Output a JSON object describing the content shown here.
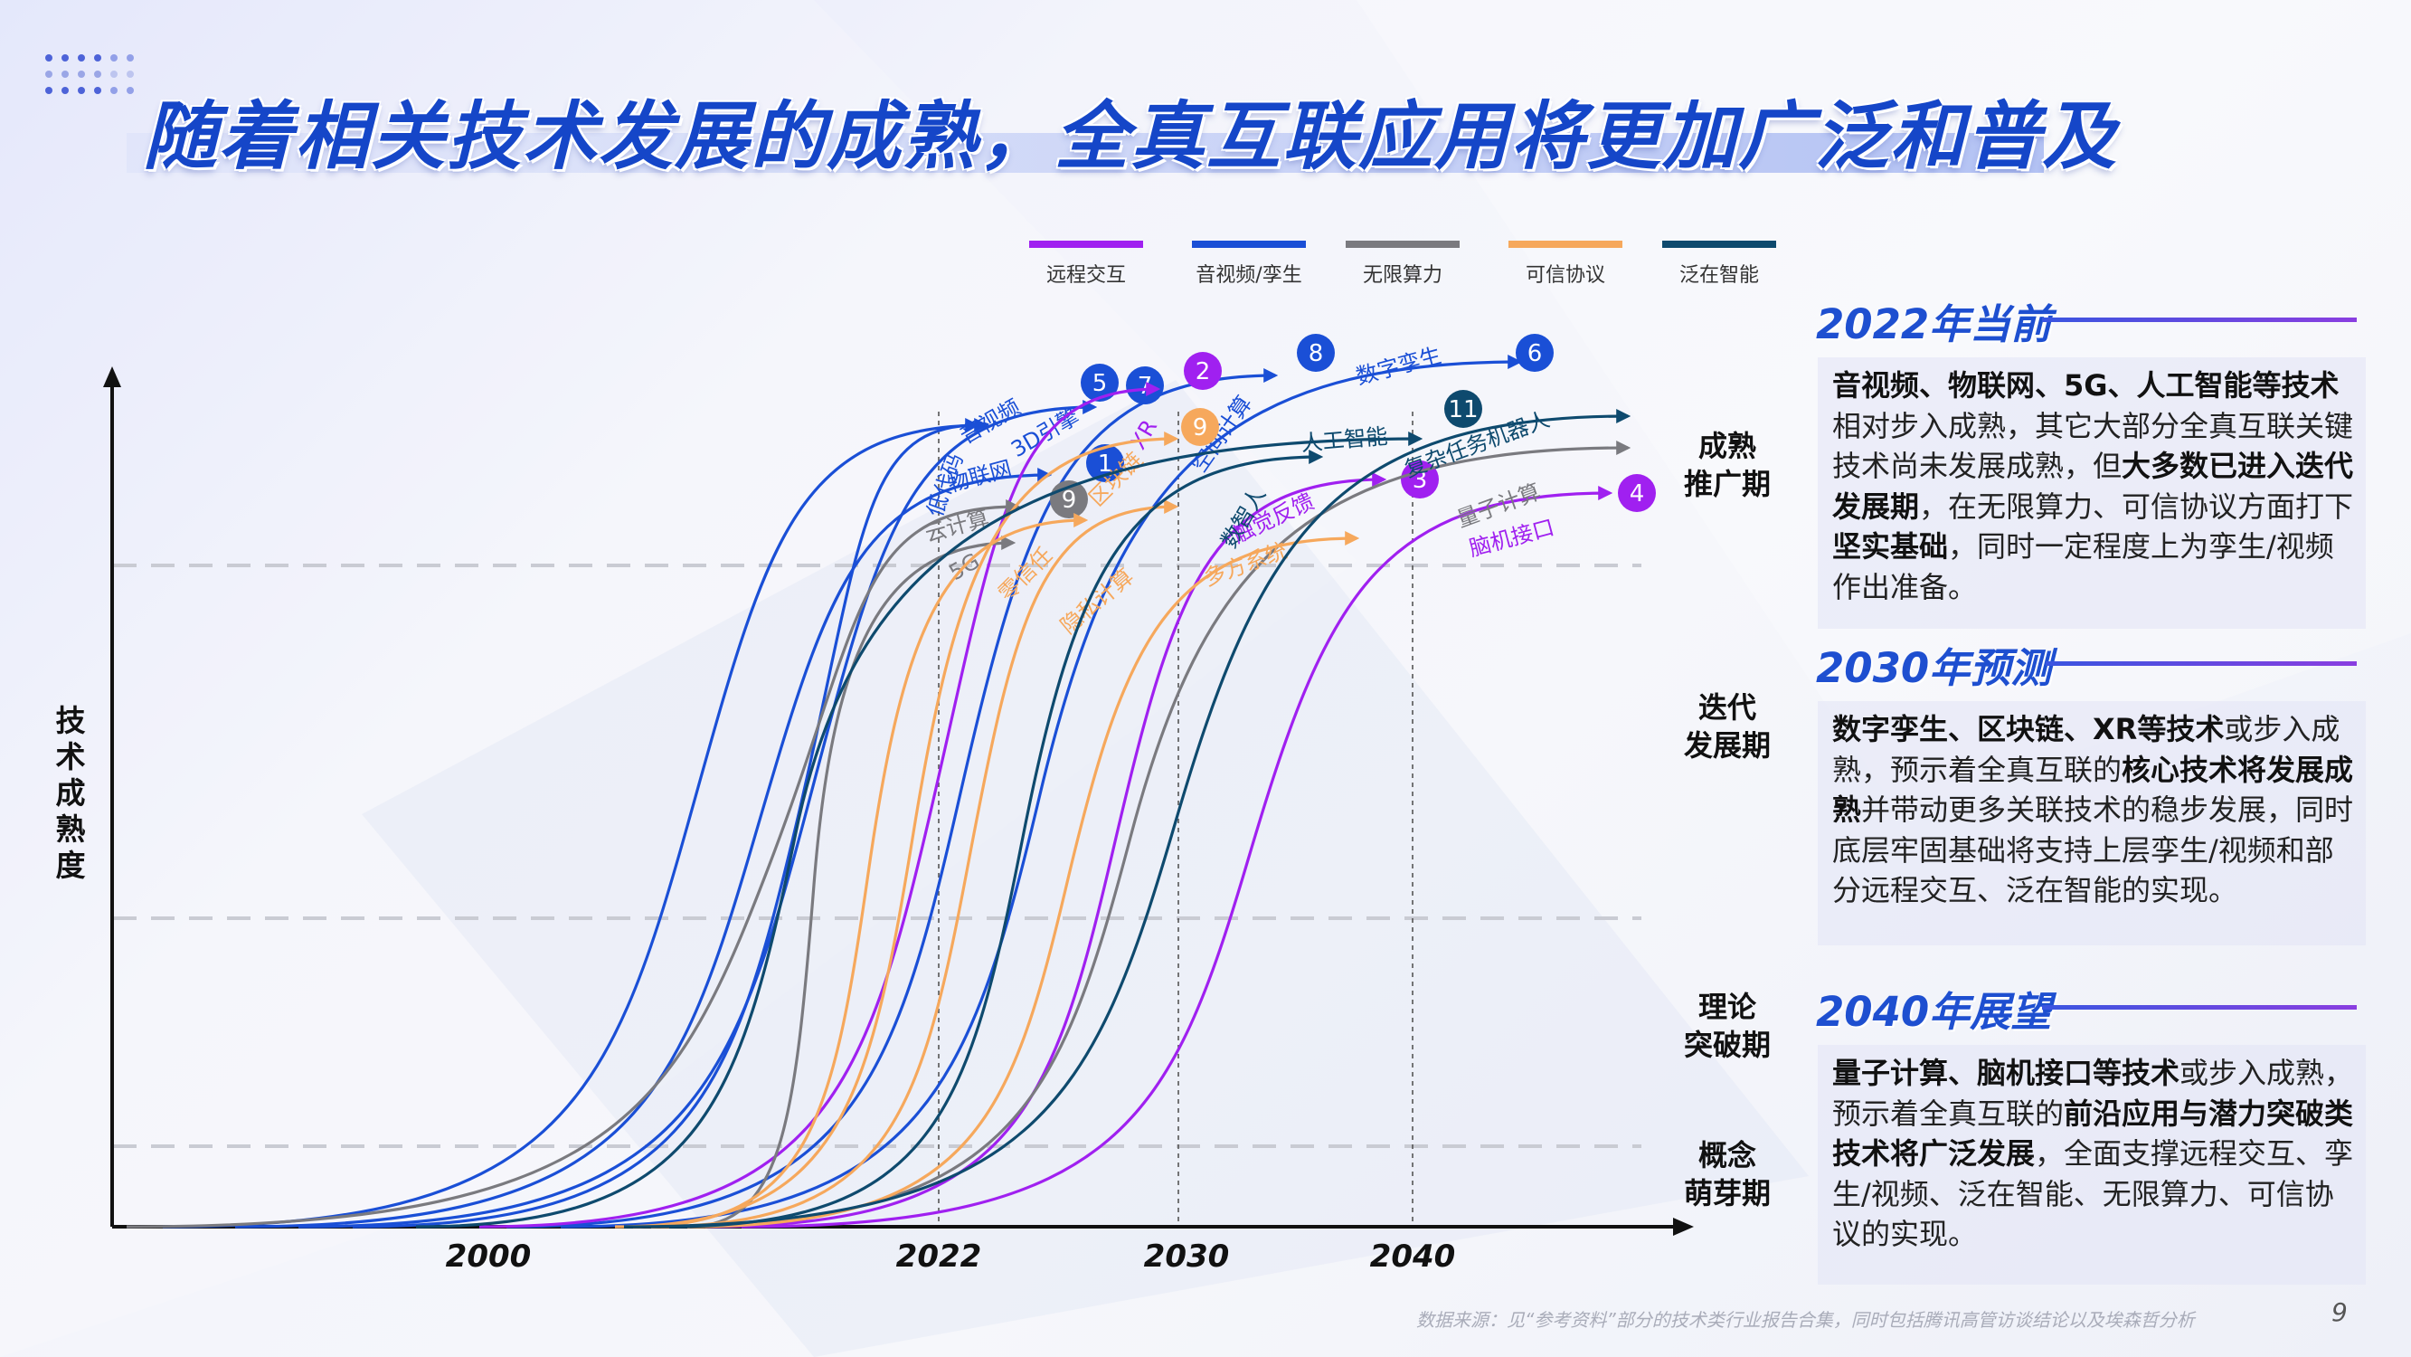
{
  "title": "随着相关技术发展的成熟，全真互联应用将更加广泛和普及",
  "source": "数据来源：见“参考资料”部分的技术类行业报告合集，同时包括腾讯高管访谈结论以及埃森哲分析",
  "page_number": "9",
  "colors": {
    "title": "#1546c8",
    "remote_interaction": "#a020f0",
    "av_twin": "#1a4fd6",
    "infinite_compute": "#7a7a7f",
    "trusted_protocol": "#f6a85c",
    "ubiquitous_intelligence": "#0e4a6e"
  },
  "panels": [
    {
      "heading": "2022年当前",
      "segments": [
        {
          "t": "音视频、物联网、5G、人工智能等技术",
          "b": true
        },
        {
          "t": "相对步入成熟，其它大部分全真互联关键技术尚未发展成熟，但",
          "b": false
        },
        {
          "t": "大多数已进入迭代发展期",
          "b": true
        },
        {
          "t": "，在无限算力、可信协议方面打下",
          "b": false
        },
        {
          "t": "坚实基础",
          "b": true
        },
        {
          "t": "，同时一定程度上为孪生/视频作出准备。",
          "b": false
        }
      ]
    },
    {
      "heading": "2030年预测",
      "segments": [
        {
          "t": "数字孪生、区块链、XR等技术",
          "b": true
        },
        {
          "t": "或步入成熟，预示着全真互联的",
          "b": false
        },
        {
          "t": "核心技术将发展成熟",
          "b": true
        },
        {
          "t": "并带动更多关联技术的稳步发展，同时底层牢固基础将支持上层孪生/视频和部分远程交互、泛在智能的实现。",
          "b": false
        }
      ]
    },
    {
      "heading": "2040年展望",
      "segments": [
        {
          "t": "量子计算、脑机接口等技术",
          "b": true
        },
        {
          "t": "或步入成熟，预示着全真互联的",
          "b": false
        },
        {
          "t": "前沿应用与潜力突破类技术将广泛发展",
          "b": true
        },
        {
          "t": "，全面支撑远程交互、孪生/视频、泛在智能、无限算力、可信协议的实现。",
          "b": false
        }
      ]
    }
  ],
  "chart_data": {
    "type": "line",
    "title": "",
    "xlabel": "",
    "ylabel": "技术成熟度",
    "x_ticks": [
      "2000",
      "2022",
      "2030",
      "2040"
    ],
    "y_levels": [
      "概念萌芽期",
      "理论突破期",
      "迭代发展期",
      "成熟推广期"
    ],
    "legend": [
      {
        "key": "remote",
        "name": "远程交互",
        "color": "#a020f0"
      },
      {
        "key": "av",
        "name": "音视频/孪生",
        "color": "#1a4fd6"
      },
      {
        "key": "compute",
        "name": "无限算力",
        "color": "#7a7a7f"
      },
      {
        "key": "trust",
        "name": "可信协议",
        "color": "#f6a85c"
      },
      {
        "key": "intel",
        "name": "泛在智能",
        "color": "#0e4a6e"
      }
    ],
    "vertical_markers": [
      "2022",
      "2030",
      "2040"
    ],
    "series": [
      {
        "name": "音视频",
        "group": "av",
        "label": "音视频",
        "badge": "5"
      },
      {
        "name": "物联网",
        "group": "av",
        "label": "物联网",
        "badge": "1"
      },
      {
        "name": "3D引擎",
        "group": "av",
        "label": "3D引擎",
        "badge": "7"
      },
      {
        "name": "空间计算",
        "group": "av",
        "label": "空间计算",
        "badge": "8"
      },
      {
        "name": "数字孪生",
        "group": "av",
        "label": "数字孪生",
        "badge": "6"
      },
      {
        "name": "低代码",
        "group": "av",
        "label": "低代码",
        "badge": ""
      },
      {
        "name": "XR",
        "group": "remote",
        "label": "XR",
        "badge": "2"
      },
      {
        "name": "触觉反馈",
        "group": "remote",
        "label": "触觉反馈",
        "badge": "3"
      },
      {
        "name": "脑机接口",
        "group": "remote",
        "label": "脑机接口",
        "badge": "4"
      },
      {
        "name": "云计算",
        "group": "compute",
        "label": "云计算",
        "badge": "9"
      },
      {
        "name": "5G",
        "group": "compute",
        "label": "5G",
        "badge": ""
      },
      {
        "name": "量子计算",
        "group": "compute",
        "label": "量子计算",
        "badge": ""
      },
      {
        "name": "区块链",
        "group": "trust",
        "label": "区块链",
        "badge": "9"
      },
      {
        "name": "隐私计算",
        "group": "trust",
        "label": "隐私计算",
        "badge": ""
      },
      {
        "name": "零信任",
        "group": "trust",
        "label": "零信任",
        "badge": ""
      },
      {
        "name": "多方系统",
        "group": "trust",
        "label": "多方系统",
        "badge": ""
      },
      {
        "name": "人工智能",
        "group": "intel",
        "label": "人工智能",
        "badge": "11"
      },
      {
        "name": "数智人",
        "group": "intel",
        "label": "数智人",
        "badge": ""
      },
      {
        "name": "复杂任务机器人",
        "group": "intel",
        "label": "复杂任务机器人",
        "badge": ""
      }
    ]
  }
}
